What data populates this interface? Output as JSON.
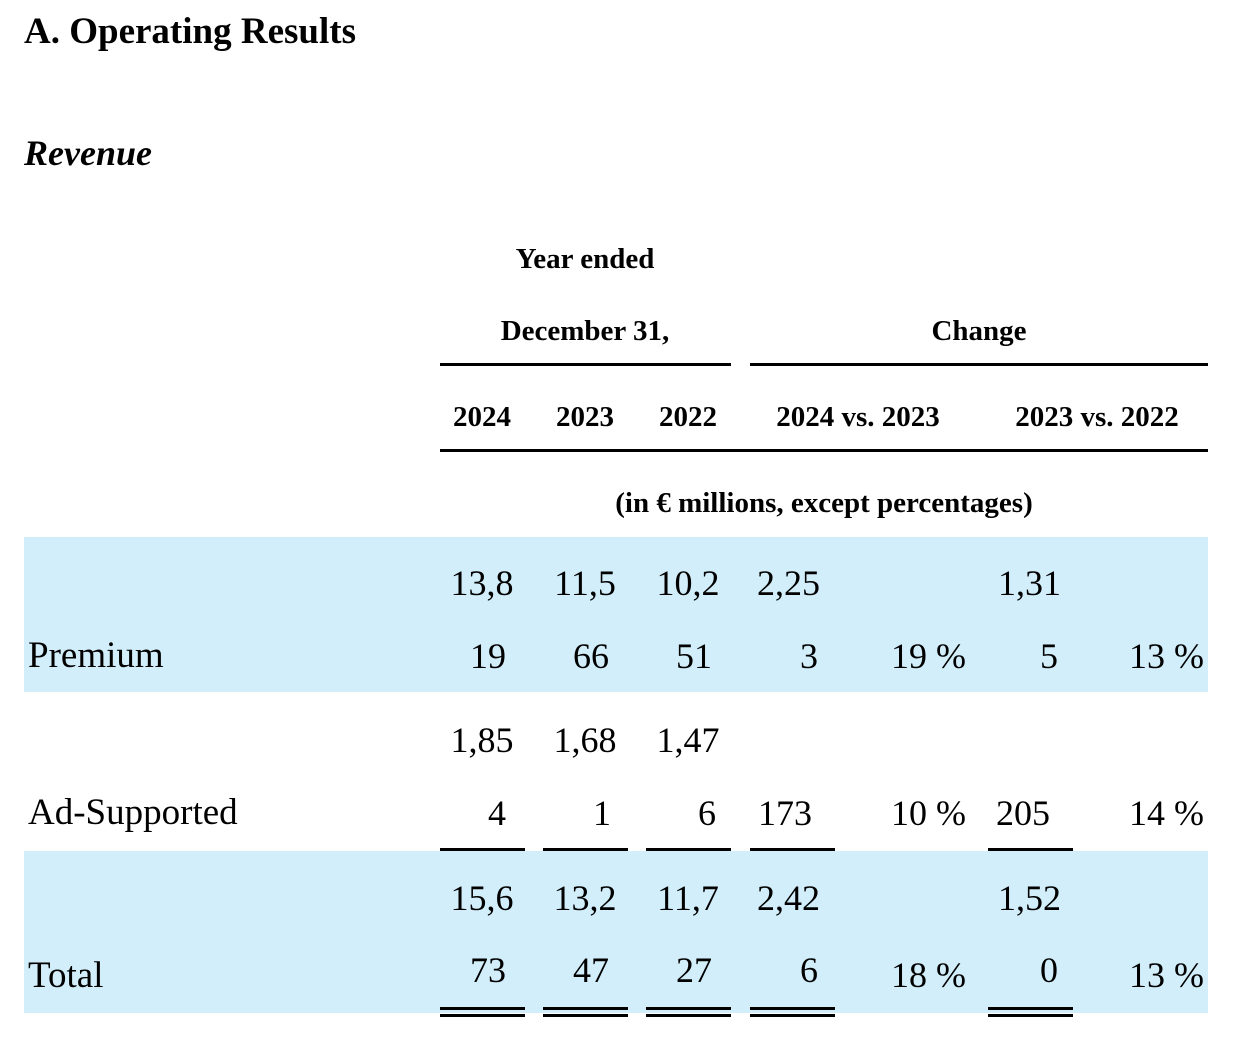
{
  "section_title": "A. Operating Results",
  "subsection_title": "Revenue",
  "header": {
    "year_ended": "Year ended",
    "december": "December 31,",
    "change": "Change",
    "col_2024": "2024",
    "col_2023": "2023",
    "col_2022": "2022",
    "col_2024_vs_2023": "2024 vs. 2023",
    "col_2023_vs_2022": "2023 vs. 2022",
    "units": "(in € millions, except percentages)"
  },
  "rows": {
    "premium": {
      "label": "Premium",
      "y2024": [
        "13,8",
        "19"
      ],
      "y2023": [
        "11,5",
        "66"
      ],
      "y2022": [
        "10,2",
        "51"
      ],
      "chg1": [
        "2,25",
        "3"
      ],
      "pct1": "19 %",
      "chg2": [
        "1,31",
        "5"
      ],
      "pct2": "13 %"
    },
    "ad_supported": {
      "label": "Ad-Supported",
      "y2024": [
        "1,85",
        "4"
      ],
      "y2023": [
        "1,68",
        "1"
      ],
      "y2022": [
        "1,47",
        "6"
      ],
      "chg1": "173",
      "pct1": "10 %",
      "chg2": "205",
      "pct2": "14 %"
    },
    "total": {
      "label": "Total",
      "y2024": [
        "15,6",
        "73"
      ],
      "y2023": [
        "13,2",
        "47"
      ],
      "y2022": [
        "11,7",
        "27"
      ],
      "chg1": [
        "2,42",
        "6"
      ],
      "pct1": "18 %",
      "chg2": [
        "1,52",
        "0"
      ],
      "pct2": "13 %"
    }
  },
  "colors": {
    "band": "#d1eefa",
    "text": "#000000"
  }
}
